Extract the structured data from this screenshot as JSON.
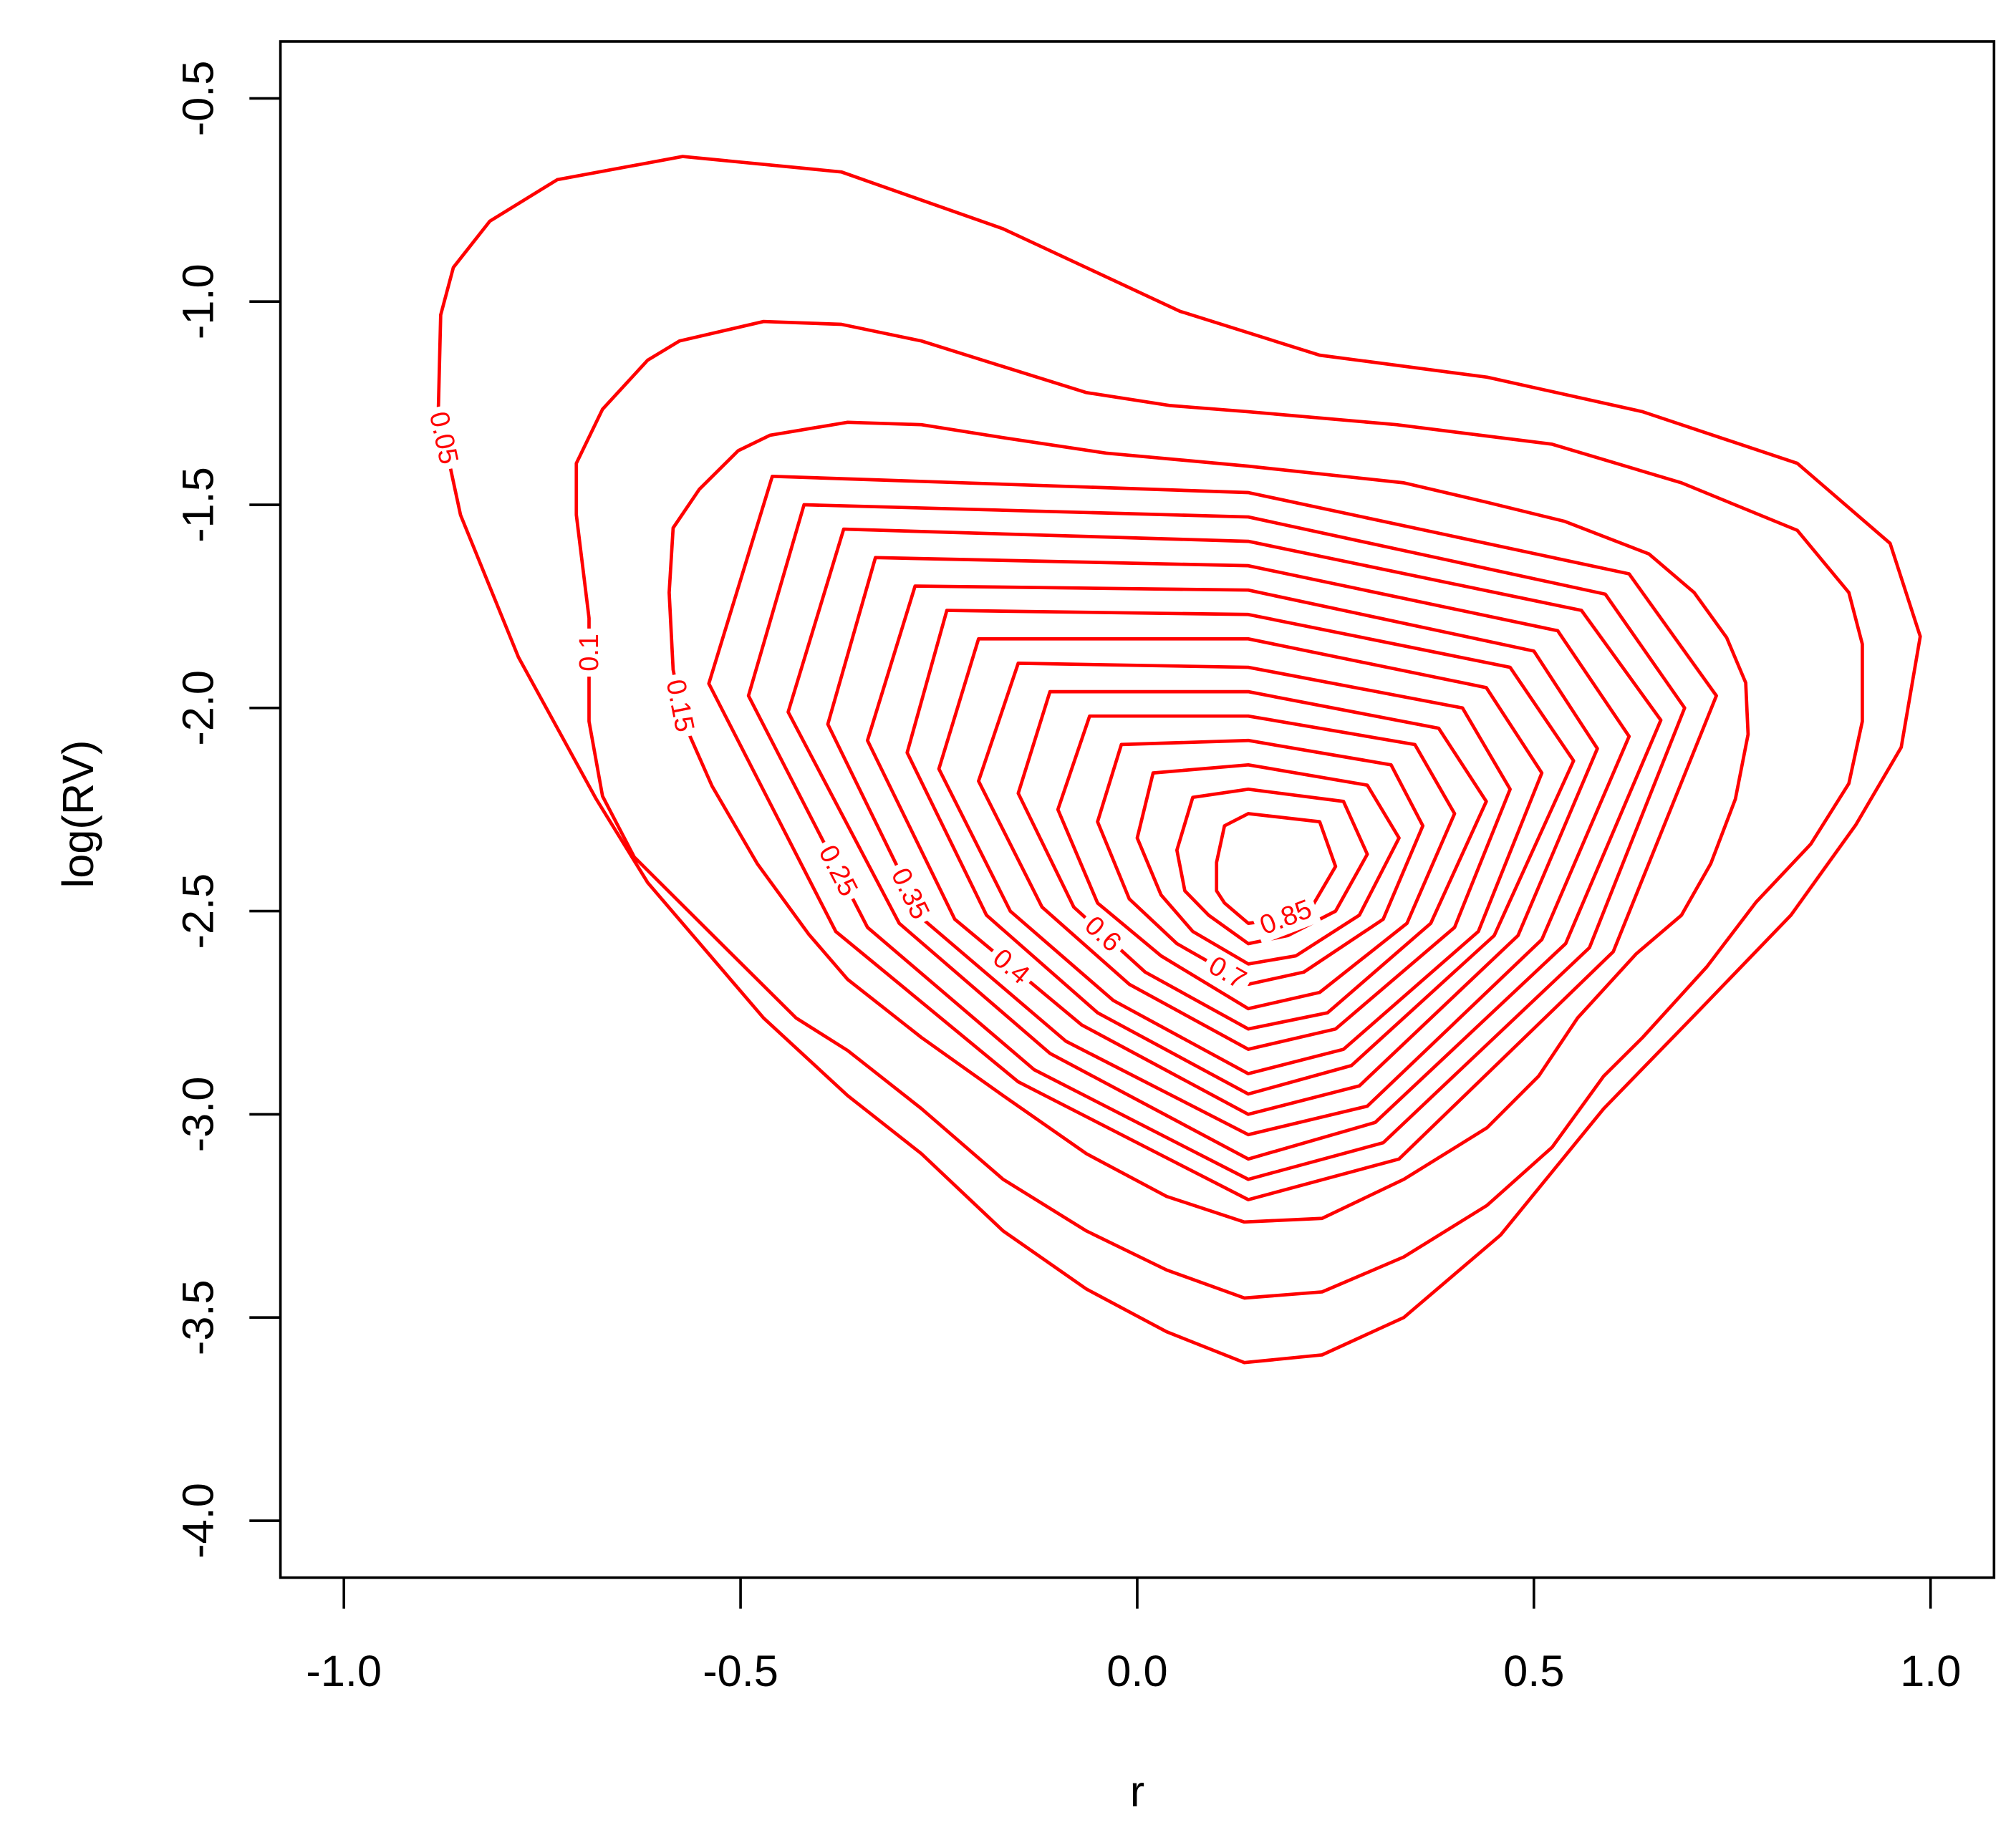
{
  "chart_data": {
    "type": "contour",
    "color": "#ff0000",
    "x_label": "r",
    "y_label": "log(RV)",
    "xlim": [
      -1.08,
      1.08
    ],
    "ylim": [
      -4.14,
      -0.36
    ],
    "xticks": [
      {
        "value": -1,
        "label": "-1.0"
      },
      -0.5,
      {
        "value": 0,
        "label": "0.0"
      },
      0.5,
      {
        "value": 1,
        "label": "1.0"
      }
    ],
    "yticks": [
      -0.5,
      {
        "value": -1,
        "label": "-1.0"
      },
      -1.5,
      {
        "value": -2,
        "label": "-2.0"
      },
      -2.5,
      {
        "value": -3,
        "label": "-3.0"
      },
      -3.5,
      {
        "value": -4,
        "label": "-4.0"
      }
    ],
    "contours": [
      {
        "label": 0.05,
        "x": [
          -0.881,
          -0.878,
          -0.862,
          -0.816,
          -0.731,
          -0.573,
          -0.373,
          -0.169,
          0.054,
          0.23,
          0.441,
          0.637,
          0.832,
          0.949,
          0.987,
          0.963,
          0.906,
          0.824,
          0.702,
          0.588,
          0.458,
          0.336,
          0.233,
          0.135,
          0.037,
          -0.064,
          -0.169,
          -0.272,
          -0.365,
          -0.471,
          -0.617,
          -0.682,
          -0.78,
          -0.853
        ],
        "y": [
          -1.271,
          -1.033,
          -0.916,
          -0.802,
          -0.7,
          -0.643,
          -0.681,
          -0.821,
          -1.024,
          -1.132,
          -1.186,
          -1.271,
          -1.398,
          -1.595,
          -1.824,
          -2.097,
          -2.287,
          -2.51,
          -2.757,
          -2.986,
          -3.297,
          -3.5,
          -3.592,
          -3.611,
          -3.535,
          -3.43,
          -3.287,
          -3.097,
          -2.954,
          -2.763,
          -2.43,
          -2.224,
          -1.875,
          -1.525
        ]
      },
      {
        "label": 0.1,
        "x": [
          -0.707,
          -0.707,
          -0.674,
          -0.617,
          -0.577,
          -0.471,
          -0.373,
          -0.272,
          -0.169,
          -0.064,
          0.042,
          0.14,
          0.327,
          0.523,
          0.686,
          0.832,
          0.897,
          0.914,
          0.914,
          0.897,
          0.849,
          0.78,
          0.718,
          0.637,
          0.588,
          0.523,
          0.441,
          0.336,
          0.233,
          0.135,
          0.037,
          -0.064,
          -0.169,
          -0.272,
          -0.365,
          -0.43,
          -0.528,
          -0.634,
          -0.674,
          -0.691,
          -0.691
        ],
        "y": [
          -1.525,
          -1.398,
          -1.265,
          -1.144,
          -1.097,
          -1.049,
          -1.056,
          -1.097,
          -1.16,
          -1.224,
          -1.256,
          -1.271,
          -1.303,
          -1.351,
          -1.446,
          -1.563,
          -1.716,
          -1.843,
          -2.033,
          -2.186,
          -2.335,
          -2.478,
          -2.637,
          -2.811,
          -2.906,
          -3.081,
          -3.224,
          -3.351,
          -3.437,
          -3.452,
          -3.383,
          -3.287,
          -3.16,
          -2.986,
          -2.843,
          -2.763,
          -2.573,
          -2.367,
          -2.217,
          -2.033,
          -1.779
        ]
      },
      {
        "label": 0.15,
        "x": [
          -0.59,
          -0.585,
          -0.552,
          -0.503,
          -0.463,
          -0.365,
          -0.272,
          -0.169,
          -0.039,
          0.14,
          0.336,
          0.441,
          0.539,
          0.645,
          0.702,
          0.743,
          0.767,
          0.77,
          0.754,
          0.723,
          0.686,
          0.629,
          0.555,
          0.506,
          0.441,
          0.336,
          0.233,
          0.135,
          0.037,
          -0.064,
          -0.169,
          -0.272,
          -0.365,
          -0.414,
          -0.479,
          -0.536,
          -0.572,
          -0.585
        ],
        "y": [
          -1.716,
          -1.557,
          -1.462,
          -1.367,
          -1.329,
          -1.297,
          -1.303,
          -1.335,
          -1.373,
          -1.405,
          -1.446,
          -1.494,
          -1.541,
          -1.621,
          -1.716,
          -1.827,
          -1.938,
          -2.065,
          -2.224,
          -2.383,
          -2.51,
          -2.605,
          -2.763,
          -2.906,
          -3.033,
          -3.16,
          -3.256,
          -3.265,
          -3.202,
          -3.097,
          -2.954,
          -2.811,
          -2.668,
          -2.557,
          -2.383,
          -2.192,
          -2.033,
          -1.906
        ]
      },
      {
        "x": [
          -0.46,
          0.14,
          0.62,
          0.73,
          0.6,
          0.33,
          0.14,
          -0.15,
          -0.38,
          -0.54
        ],
        "y": [
          -1.43,
          -1.47,
          -1.67,
          -1.97,
          -2.6,
          -3.11,
          -3.21,
          -2.92,
          -2.55,
          -1.94
        ]
      },
      {
        "label": 0.25,
        "x": [
          -0.42,
          0.14,
          0.59,
          0.69,
          0.57,
          0.31,
          0.14,
          -0.13,
          -0.34,
          -0.49
        ],
        "y": [
          -1.5,
          -1.53,
          -1.72,
          -2.0,
          -2.59,
          -3.07,
          -3.16,
          -2.89,
          -2.54,
          -1.97
        ]
      },
      {
        "x": [
          -0.37,
          0.14,
          0.56,
          0.66,
          0.54,
          0.3,
          0.14,
          -0.11,
          -0.3,
          -0.44
        ],
        "y": [
          -1.56,
          -1.59,
          -1.76,
          -2.03,
          -2.58,
          -3.02,
          -3.11,
          -2.85,
          -2.53,
          -2.01
        ]
      },
      {
        "label": 0.35,
        "x": [
          -0.33,
          0.14,
          0.53,
          0.62,
          0.51,
          0.29,
          0.14,
          -0.09,
          -0.27,
          -0.39
        ],
        "y": [
          -1.63,
          -1.65,
          -1.81,
          -2.07,
          -2.57,
          -2.98,
          -3.05,
          -2.82,
          -2.52,
          -2.04
        ]
      },
      {
        "label": 0.4,
        "x": [
          -0.28,
          0.14,
          0.5,
          0.58,
          0.48,
          0.28,
          0.14,
          -0.07,
          -0.23,
          -0.34
        ],
        "y": [
          -1.7,
          -1.71,
          -1.86,
          -2.1,
          -2.56,
          -2.93,
          -3.0,
          -2.78,
          -2.52,
          -2.08
        ]
      },
      {
        "x": [
          -0.24,
          0.14,
          0.47,
          0.55,
          0.45,
          0.27,
          0.14,
          -0.05,
          -0.19,
          -0.29
        ],
        "y": [
          -1.76,
          -1.77,
          -1.9,
          -2.13,
          -2.56,
          -2.88,
          -2.95,
          -2.75,
          -2.51,
          -2.11
        ]
      },
      {
        "x": [
          -0.2,
          0.14,
          0.44,
          0.51,
          0.43,
          0.26,
          0.14,
          -0.03,
          -0.16,
          -0.25
        ],
        "y": [
          -1.83,
          -1.83,
          -1.95,
          -2.16,
          -2.55,
          -2.84,
          -2.9,
          -2.72,
          -2.5,
          -2.15
        ]
      },
      {
        "x": [
          -0.15,
          0.14,
          0.41,
          0.47,
          0.4,
          0.25,
          0.14,
          -0.01,
          -0.12,
          -0.2
        ],
        "y": [
          -1.89,
          -1.9,
          -2.0,
          -2.2,
          -2.54,
          -2.79,
          -2.84,
          -2.68,
          -2.49,
          -2.18
        ]
      },
      {
        "label": 0.6,
        "x": [
          -0.11,
          0.14,
          0.38,
          0.44,
          0.37,
          0.24,
          0.14,
          0.01,
          -0.08,
          -0.15
        ],
        "y": [
          -1.96,
          -1.96,
          -2.05,
          -2.23,
          -2.53,
          -2.75,
          -2.79,
          -2.65,
          -2.49,
          -2.21
        ]
      },
      {
        "x": [
          -0.06,
          0.14,
          0.35,
          0.4,
          0.34,
          0.23,
          0.14,
          0.03,
          -0.05,
          -0.1
        ],
        "y": [
          -2.02,
          -2.02,
          -2.09,
          -2.26,
          -2.53,
          -2.7,
          -2.74,
          -2.61,
          -2.48,
          -2.25
        ]
      },
      {
        "label": 0.7,
        "x": [
          -0.02,
          0.14,
          0.32,
          0.36,
          0.31,
          0.21,
          0.14,
          0.05,
          -0.01,
          -0.05
        ],
        "y": [
          -2.09,
          -2.08,
          -2.14,
          -2.29,
          -2.52,
          -2.65,
          -2.68,
          -2.58,
          -2.47,
          -2.28
        ]
      },
      {
        "x": [
          0.02,
          0.14,
          0.29,
          0.33,
          0.28,
          0.2,
          0.14,
          0.07,
          0.03,
          0.0
        ],
        "y": [
          -2.16,
          -2.14,
          -2.19,
          -2.32,
          -2.51,
          -2.61,
          -2.63,
          -2.55,
          -2.46,
          -2.32
        ]
      },
      {
        "x": [
          0.07,
          0.14,
          0.26,
          0.29,
          0.25,
          0.19,
          0.14,
          0.09,
          0.06,
          0.05
        ],
        "y": [
          -2.22,
          -2.2,
          -2.23,
          -2.36,
          -2.5,
          -2.56,
          -2.58,
          -2.51,
          -2.45,
          -2.35
        ]
      },
      {
        "label": 0.85,
        "x": [
          0.11,
          0.14,
          0.23,
          0.25,
          0.22,
          0.18,
          0.14,
          0.11,
          0.1,
          0.1
        ],
        "y": [
          -2.29,
          -2.26,
          -2.28,
          -2.39,
          -2.49,
          -2.52,
          -2.53,
          -2.48,
          -2.45,
          -2.38
        ]
      }
    ]
  }
}
